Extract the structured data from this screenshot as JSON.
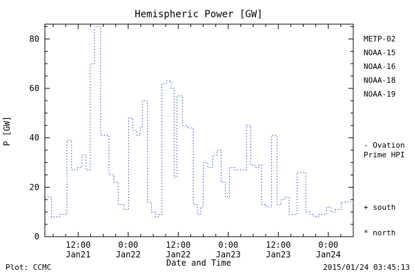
{
  "title": "Hemispheric Power [GW]",
  "axes": {
    "ylabel": "P [GW]",
    "xlabel": "Date and Time"
  },
  "footer": {
    "plot_credit": "Plot: CCMC",
    "timestamp": "2015/01/24 03:45:13"
  },
  "legend": {
    "satellites": [
      {
        "label": "METP-02",
        "color": "#000000"
      },
      {
        "label": "NOAA-15",
        "color": "#2233cc"
      },
      {
        "label": "NOAA-16",
        "color": "#00aadd"
      },
      {
        "label": "NOAA-18",
        "color": "#33cc77"
      },
      {
        "label": "NOAA-19",
        "color": "#ee9933"
      }
    ],
    "ovation": {
      "lines": [
        "- Ovation",
        "Prime HPI"
      ],
      "color": "#2233cc"
    },
    "markers": [
      "+ south",
      "* north"
    ]
  },
  "chart_data": {
    "type": "line",
    "subtype": "step-after",
    "line_style": "dotted",
    "color": "#3355cc",
    "title": "Hemispheric Power [GW]",
    "xlabel": "Date and Time",
    "ylabel": "P [GW]",
    "x_unit": "hours since 2015-01-21 00:00 UT",
    "xlim": [
      4,
      78
    ],
    "ylim": [
      0,
      86
    ],
    "yticks": [
      0,
      20,
      40,
      60,
      80
    ],
    "y_minor_step": 5,
    "x_minor_step": 3,
    "grid": false,
    "xticks": [
      {
        "t": 12,
        "label": "12:00",
        "sublabel": "Jan21"
      },
      {
        "t": 24,
        "label": "0:00",
        "sublabel": "Jan22"
      },
      {
        "t": 36,
        "label": "12:00",
        "sublabel": "Jan22"
      },
      {
        "t": 48,
        "label": "0:00",
        "sublabel": "Jan23"
      },
      {
        "t": 60,
        "label": "12:00",
        "sublabel": "Jan23"
      },
      {
        "t": 72,
        "label": "0:00",
        "sublabel": "Jan24"
      }
    ],
    "points": [
      [
        4.0,
        16
      ],
      [
        5.6,
        8
      ],
      [
        7.6,
        9
      ],
      [
        9.3,
        39
      ],
      [
        10.4,
        27
      ],
      [
        11.8,
        28
      ],
      [
        12.9,
        33
      ],
      [
        13.9,
        27
      ],
      [
        14.9,
        70
      ],
      [
        15.9,
        85
      ],
      [
        17.4,
        41
      ],
      [
        19.4,
        25
      ],
      [
        20.6,
        22
      ],
      [
        21.6,
        13
      ],
      [
        23.0,
        11
      ],
      [
        24.1,
        48
      ],
      [
        25.1,
        43
      ],
      [
        26.1,
        41
      ],
      [
        26.9,
        44
      ],
      [
        27.4,
        55
      ],
      [
        28.6,
        14
      ],
      [
        29.6,
        10
      ],
      [
        30.6,
        8
      ],
      [
        31.4,
        9
      ],
      [
        32.1,
        62
      ],
      [
        33.2,
        63
      ],
      [
        34.3,
        60
      ],
      [
        35.0,
        24
      ],
      [
        35.7,
        57
      ],
      [
        37.0,
        45
      ],
      [
        38.2,
        44
      ],
      [
        39.6,
        13
      ],
      [
        40.6,
        9
      ],
      [
        41.4,
        12
      ],
      [
        42.0,
        30
      ],
      [
        43.1,
        28
      ],
      [
        44.3,
        33
      ],
      [
        45.3,
        35
      ],
      [
        46.3,
        22
      ],
      [
        47.3,
        16
      ],
      [
        48.3,
        28
      ],
      [
        49.6,
        27
      ],
      [
        51.1,
        27
      ],
      [
        52.4,
        45
      ],
      [
        53.4,
        29
      ],
      [
        54.4,
        28
      ],
      [
        55.4,
        29
      ],
      [
        56.0,
        13
      ],
      [
        57.1,
        12
      ],
      [
        58.4,
        41
      ],
      [
        59.7,
        13
      ],
      [
        60.7,
        15
      ],
      [
        61.6,
        16
      ],
      [
        62.6,
        9
      ],
      [
        64.5,
        26
      ],
      [
        65.6,
        26
      ],
      [
        66.6,
        10
      ],
      [
        67.6,
        9
      ],
      [
        68.6,
        8
      ],
      [
        69.6,
        9
      ],
      [
        70.6,
        9
      ],
      [
        71.6,
        12
      ],
      [
        72.6,
        10
      ],
      [
        73.6,
        11
      ],
      [
        75.1,
        14
      ]
    ]
  }
}
